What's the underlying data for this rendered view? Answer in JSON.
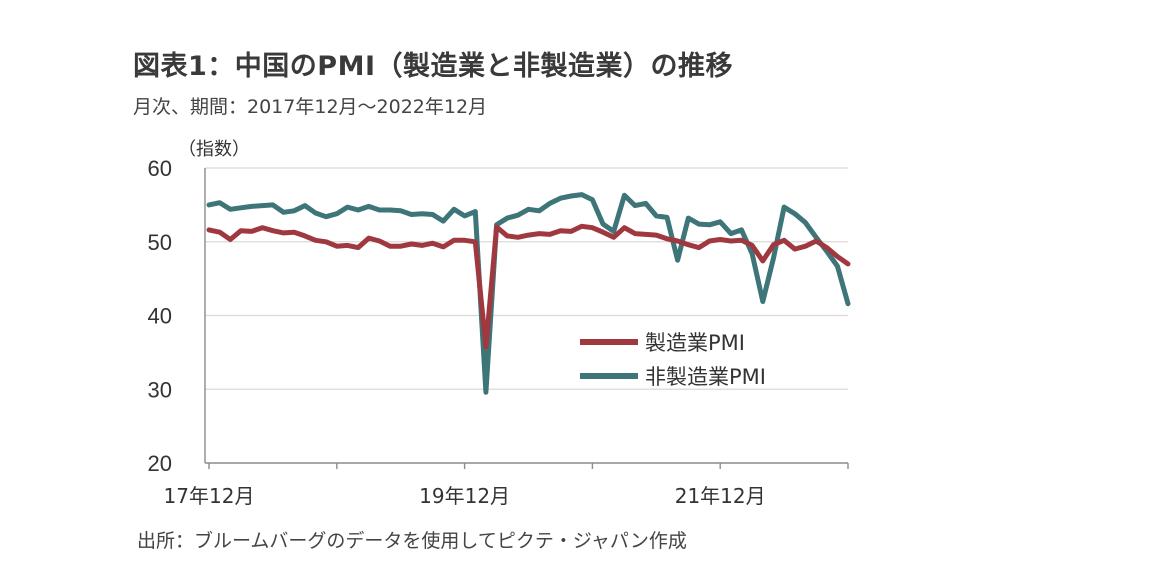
{
  "header": {
    "title": "図表1：中国のPMI（製造業と非製造業）の推移",
    "subtitle": "月次、期間：2017年12月～2022年12月"
  },
  "footer": {
    "source": "出所：ブルームバーグのデータを使用してピクテ・ジャパン作成"
  },
  "chart_data": {
    "type": "line",
    "ylabel": "（指数）",
    "ylim": [
      20,
      60
    ],
    "yticks": [
      "60",
      "50",
      "40",
      "30",
      "20"
    ],
    "grid": "horizontal",
    "legend_position": "center-right",
    "x_tick_labels": [
      "17年12月",
      "19年12月",
      "21年12月"
    ],
    "x": [
      "2017-12",
      "2018-01",
      "2018-02",
      "2018-03",
      "2018-04",
      "2018-05",
      "2018-06",
      "2018-07",
      "2018-08",
      "2018-09",
      "2018-10",
      "2018-11",
      "2018-12",
      "2019-01",
      "2019-02",
      "2019-03",
      "2019-04",
      "2019-05",
      "2019-06",
      "2019-07",
      "2019-08",
      "2019-09",
      "2019-10",
      "2019-11",
      "2019-12",
      "2020-01",
      "2020-02",
      "2020-03",
      "2020-04",
      "2020-05",
      "2020-06",
      "2020-07",
      "2020-08",
      "2020-09",
      "2020-10",
      "2020-11",
      "2020-12",
      "2021-01",
      "2021-02",
      "2021-03",
      "2021-04",
      "2021-05",
      "2021-06",
      "2021-07",
      "2021-08",
      "2021-09",
      "2021-10",
      "2021-11",
      "2021-12",
      "2022-01",
      "2022-02",
      "2022-03",
      "2022-04",
      "2022-05",
      "2022-06",
      "2022-07",
      "2022-08",
      "2022-09",
      "2022-10",
      "2022-11",
      "2022-12"
    ],
    "series": [
      {
        "name": "製造業PMI",
        "color": "#a0393f",
        "values": [
          51.6,
          51.3,
          50.3,
          51.5,
          51.4,
          51.9,
          51.5,
          51.2,
          51.3,
          50.8,
          50.2,
          50.0,
          49.4,
          49.5,
          49.2,
          50.5,
          50.1,
          49.4,
          49.4,
          49.7,
          49.5,
          49.8,
          49.3,
          50.2,
          50.2,
          50.0,
          35.7,
          52.0,
          50.8,
          50.6,
          50.9,
          51.1,
          51.0,
          51.5,
          51.4,
          52.1,
          51.9,
          51.3,
          50.6,
          51.9,
          51.1,
          51.0,
          50.9,
          50.4,
          50.1,
          49.6,
          49.2,
          50.1,
          50.3,
          50.1,
          50.2,
          49.5,
          47.4,
          49.6,
          50.2,
          49.0,
          49.4,
          50.1,
          49.2,
          48.0,
          47.0
        ]
      },
      {
        "name": "非製造業PMI",
        "color": "#3e7578",
        "values": [
          55.0,
          55.3,
          54.4,
          54.6,
          54.8,
          54.9,
          55.0,
          54.0,
          54.2,
          54.9,
          53.9,
          53.4,
          53.8,
          54.7,
          54.3,
          54.8,
          54.3,
          54.3,
          54.2,
          53.7,
          53.8,
          53.7,
          52.8,
          54.4,
          53.5,
          54.1,
          29.6,
          52.3,
          53.2,
          53.6,
          54.4,
          54.2,
          55.2,
          55.9,
          56.2,
          56.4,
          55.7,
          52.4,
          51.4,
          56.3,
          54.9,
          55.2,
          53.5,
          53.3,
          47.5,
          53.2,
          52.4,
          52.3,
          52.7,
          51.1,
          51.6,
          48.4,
          41.9,
          47.8,
          54.7,
          53.8,
          52.6,
          50.6,
          48.7,
          46.7,
          41.6
        ]
      }
    ]
  }
}
